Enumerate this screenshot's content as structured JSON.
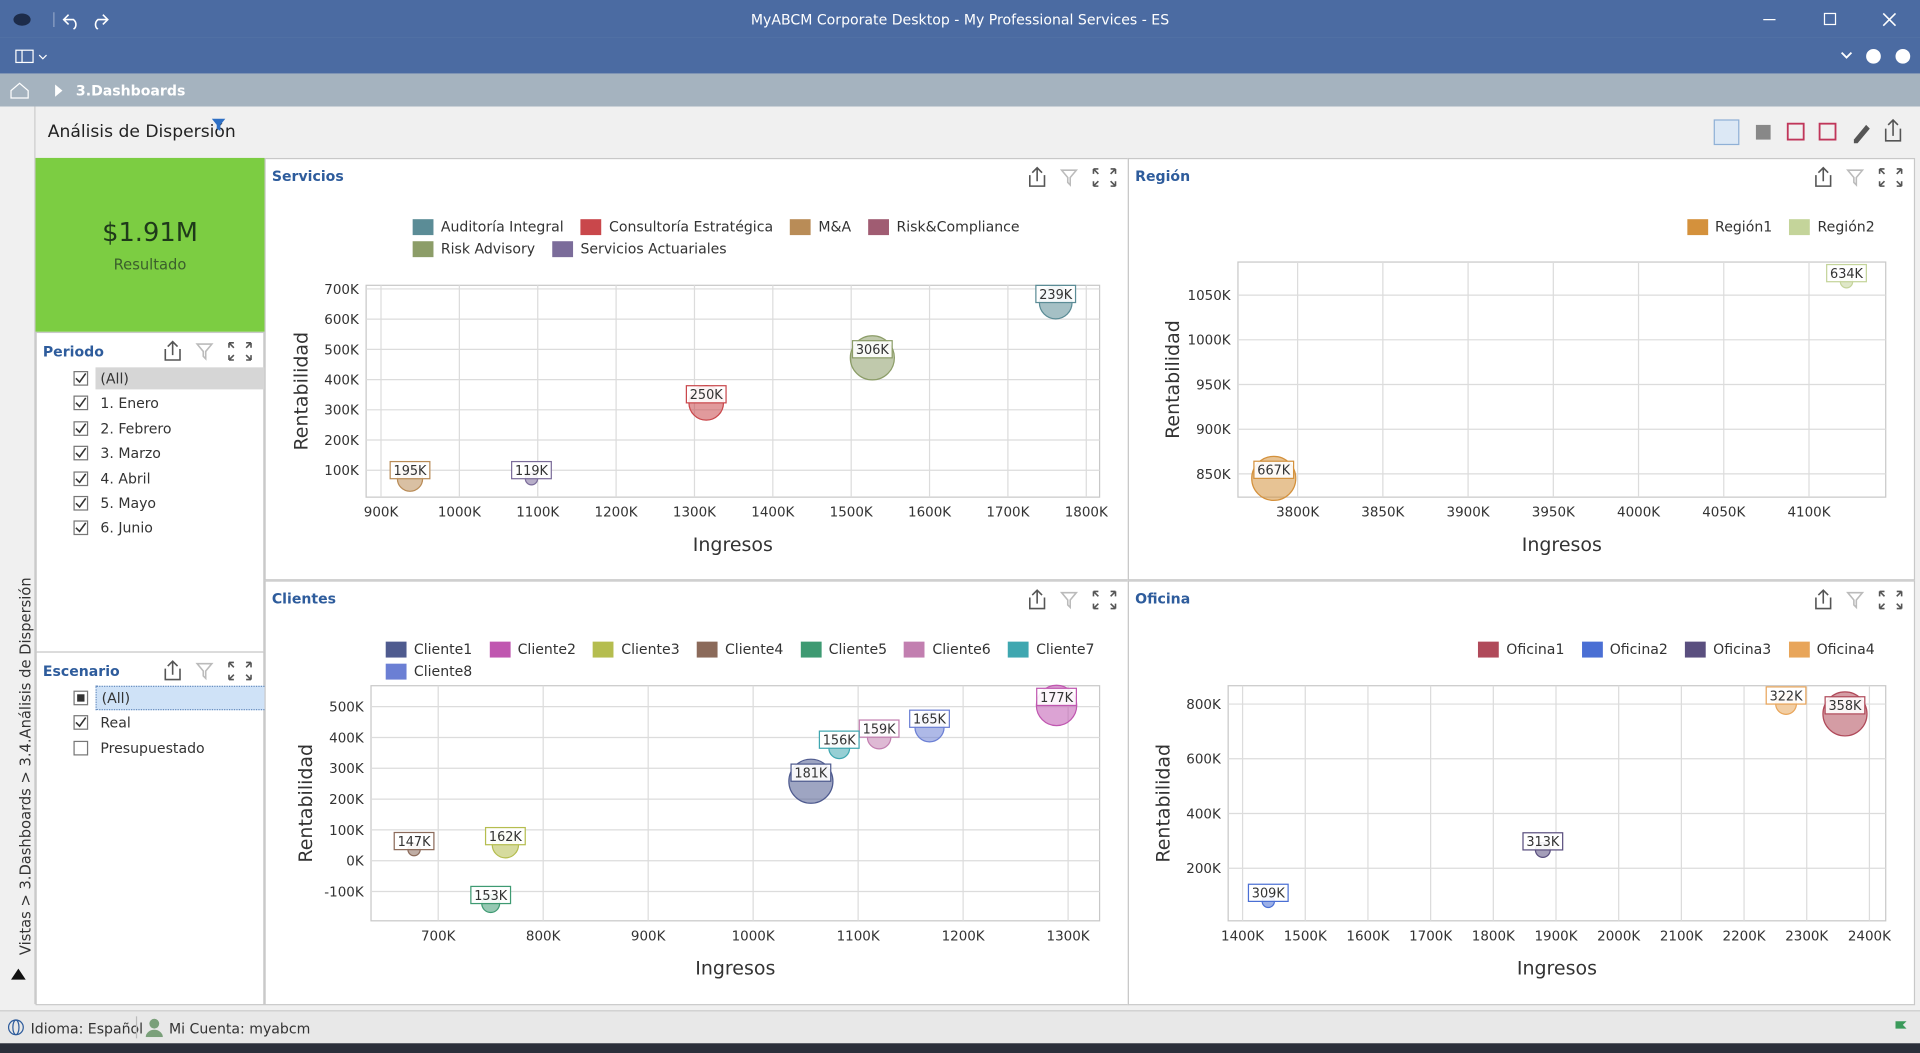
{
  "window": {
    "title": "MyABCM Corporate Desktop - My Professional Services - ES"
  },
  "breadcrumb": "3.Dashboards",
  "side_path": "Vistas > 3.Dashboards > 3.4.Análisis de Dispersión",
  "dashboard_title": "Análisis de Dispersión",
  "kpi": {
    "value": "$1.91M",
    "label": "Resultado"
  },
  "filters": [
    {
      "title": "Periodo",
      "items": [
        {
          "label": "(All)",
          "state": "checked",
          "selected": true
        },
        {
          "label": "1. Enero",
          "state": "checked",
          "selected": false
        },
        {
          "label": "2. Febrero",
          "state": "checked",
          "selected": false
        },
        {
          "label": "3. Marzo",
          "state": "checked",
          "selected": false
        },
        {
          "label": "4. Abril",
          "state": "checked",
          "selected": false
        },
        {
          "label": "5. Mayo",
          "state": "checked",
          "selected": false
        },
        {
          "label": "6. Junio",
          "state": "checked",
          "selected": false
        }
      ]
    },
    {
      "title": "Escenario",
      "items": [
        {
          "label": "(All)",
          "state": "partial",
          "selected": true
        },
        {
          "label": "Real",
          "state": "checked",
          "selected": false
        },
        {
          "label": "Presupuestado",
          "state": "unchecked",
          "selected": false
        }
      ]
    }
  ],
  "status": {
    "language": "Idioma: Español",
    "account": "Mi Cuenta: myabcm"
  },
  "chart_data": [
    {
      "type": "bubble",
      "title": "Servicios",
      "x_label": "Ingresos",
      "y_label": "Rentabilidad",
      "grid": true,
      "legend": "top-left",
      "xlim": [
        881000,
        1817000
      ],
      "xticks": [
        {
          "value": 900000,
          "label": "900K"
        },
        {
          "value": 1000000,
          "label": "1000K"
        },
        {
          "value": 1100000,
          "label": "1100K"
        },
        {
          "value": 1200000,
          "label": "1200K"
        },
        {
          "value": 1300000,
          "label": "1300K"
        },
        {
          "value": 1400000,
          "label": "1400K"
        },
        {
          "value": 1500000,
          "label": "1500K"
        },
        {
          "value": 1600000,
          "label": "1600K"
        },
        {
          "value": 1700000,
          "label": "1700K"
        },
        {
          "value": 1800000,
          "label": "1800K"
        }
      ],
      "ylim": [
        11000,
        712000
      ],
      "yticks": [
        {
          "value": 100000,
          "label": "100K"
        },
        {
          "value": 200000,
          "label": "200K"
        },
        {
          "value": 300000,
          "label": "300K"
        },
        {
          "value": 400000,
          "label": "400K"
        },
        {
          "value": 500000,
          "label": "500K"
        },
        {
          "value": 600000,
          "label": "600K"
        },
        {
          "value": 700000,
          "label": "700K"
        }
      ],
      "series": [
        {
          "name": "Auditoría Integral",
          "color": "#5b8c96",
          "x": [
            1761000
          ],
          "values": [
            655000
          ],
          "sizes": [
            239000
          ],
          "size_labels": [
            "239K"
          ]
        },
        {
          "name": "Consultoría Estratégica",
          "color": "#c9474b",
          "x": [
            1315000
          ],
          "values": [
            323000
          ],
          "sizes": [
            250000
          ],
          "size_labels": [
            "250K"
          ]
        },
        {
          "name": "M&A",
          "color": "#b98c57",
          "x": [
            937000
          ],
          "values": [
            72000
          ],
          "sizes": [
            195000
          ],
          "size_labels": [
            "195K"
          ]
        },
        {
          "name": "Risk&Compliance",
          "color": "#a05c72",
          "x": [],
          "values": [],
          "sizes": [],
          "size_labels": []
        },
        {
          "name": "Risk Advisory",
          "color": "#8c9d68",
          "x": [
            1527000
          ],
          "values": [
            472000
          ],
          "sizes": [
            306000
          ],
          "size_labels": [
            "306K"
          ]
        },
        {
          "name": "Servicios Actuariales",
          "color": "#7b6c9a",
          "x": [
            1092000
          ],
          "values": [
            72000
          ],
          "sizes": [
            119000
          ],
          "size_labels": [
            "119K"
          ]
        }
      ]
    },
    {
      "type": "bubble",
      "title": "Región",
      "x_label": "Ingresos",
      "y_label": "Rentabilidad",
      "grid": true,
      "legend": "top-right",
      "xlim": [
        3765000,
        4145000
      ],
      "xticks": [
        {
          "value": 3800000,
          "label": "3800K"
        },
        {
          "value": 3850000,
          "label": "3850K"
        },
        {
          "value": 3900000,
          "label": "3900K"
        },
        {
          "value": 3950000,
          "label": "3950K"
        },
        {
          "value": 4000000,
          "label": "4000K"
        },
        {
          "value": 4050000,
          "label": "4050K"
        },
        {
          "value": 4100000,
          "label": "4100K"
        }
      ],
      "ylim": [
        824000,
        1087000
      ],
      "yticks": [
        {
          "value": 850000,
          "label": "850K"
        },
        {
          "value": 900000,
          "label": "900K"
        },
        {
          "value": 950000,
          "label": "950K"
        },
        {
          "value": 1000000,
          "label": "1000K"
        },
        {
          "value": 1050000,
          "label": "1050K"
        }
      ],
      "series": [
        {
          "name": "Región1",
          "color": "#d4913c",
          "x": [
            3786000
          ],
          "values": [
            845000
          ],
          "sizes": [
            667000
          ],
          "size_labels": [
            "667K"
          ]
        },
        {
          "name": "Región2",
          "color": "#c4d49a",
          "x": [
            4122000
          ],
          "values": [
            1065000
          ],
          "sizes": [
            634000
          ],
          "size_labels": [
            "634K"
          ]
        }
      ]
    },
    {
      "type": "bubble",
      "title": "Clientes",
      "x_label": "Ingresos",
      "y_label": "Rentabilidad",
      "grid": true,
      "legend": "top-left",
      "xlim": [
        636000,
        1330000
      ],
      "xticks": [
        {
          "value": 700000,
          "label": "700K"
        },
        {
          "value": 800000,
          "label": "800K"
        },
        {
          "value": 900000,
          "label": "900K"
        },
        {
          "value": 1000000,
          "label": "1000K"
        },
        {
          "value": 1100000,
          "label": "1100K"
        },
        {
          "value": 1200000,
          "label": "1200K"
        },
        {
          "value": 1300000,
          "label": "1300K"
        }
      ],
      "ylim": [
        -195000,
        568000
      ],
      "yticks": [
        {
          "value": -100000,
          "label": "-100K"
        },
        {
          "value": 0,
          "label": "0K"
        },
        {
          "value": 100000,
          "label": "100K"
        },
        {
          "value": 200000,
          "label": "200K"
        },
        {
          "value": 300000,
          "label": "300K"
        },
        {
          "value": 400000,
          "label": "400K"
        },
        {
          "value": 500000,
          "label": "500K"
        }
      ],
      "series": [
        {
          "name": "Cliente1",
          "color": "#4f5b8f",
          "x": [
            1055000
          ],
          "values": [
            258000
          ],
          "sizes": [
            181000
          ],
          "size_labels": [
            "181K"
          ]
        },
        {
          "name": "Cliente2",
          "color": "#c057b0",
          "x": [
            1289000
          ],
          "values": [
            504000
          ],
          "sizes": [
            177000
          ],
          "size_labels": [
            "177K"
          ]
        },
        {
          "name": "Cliente3",
          "color": "#b5bd4f",
          "x": [
            764000
          ],
          "values": [
            52000
          ],
          "sizes": [
            162000
          ],
          "size_labels": [
            "162K"
          ]
        },
        {
          "name": "Cliente4",
          "color": "#8b6a5a",
          "x": [
            677000
          ],
          "values": [
            36000
          ],
          "sizes": [
            147000
          ],
          "size_labels": [
            "147K"
          ]
        },
        {
          "name": "Cliente5",
          "color": "#3e9a72",
          "x": [
            750000
          ],
          "values": [
            -139000
          ],
          "sizes": [
            153000
          ],
          "size_labels": [
            "153K"
          ]
        },
        {
          "name": "Cliente6",
          "color": "#c27fb0",
          "x": [
            1120000
          ],
          "values": [
            401000
          ],
          "sizes": [
            159000
          ],
          "size_labels": [
            "159K"
          ]
        },
        {
          "name": "Cliente7",
          "color": "#3fa7b0",
          "x": [
            1082000
          ],
          "values": [
            365000
          ],
          "sizes": [
            156000
          ],
          "size_labels": [
            "156K"
          ]
        },
        {
          "name": "Cliente8",
          "color": "#6b7fd4",
          "x": [
            1168000
          ],
          "values": [
            433000
          ],
          "sizes": [
            165000
          ],
          "size_labels": [
            "165K"
          ]
        }
      ]
    },
    {
      "type": "bubble",
      "title": "Oficina",
      "x_label": "Ingresos",
      "y_label": "Rentabilidad",
      "grid": true,
      "legend": "top-right",
      "xlim": [
        1377000,
        2426000
      ],
      "xticks": [
        {
          "value": 1400000,
          "label": "1400K"
        },
        {
          "value": 1500000,
          "label": "1500K"
        },
        {
          "value": 1600000,
          "label": "1600K"
        },
        {
          "value": 1700000,
          "label": "1700K"
        },
        {
          "value": 1800000,
          "label": "1800K"
        },
        {
          "value": 1900000,
          "label": "1900K"
        },
        {
          "value": 2000000,
          "label": "2000K"
        },
        {
          "value": 2100000,
          "label": "2100K"
        },
        {
          "value": 2200000,
          "label": "2200K"
        },
        {
          "value": 2300000,
          "label": "2300K"
        },
        {
          "value": 2400000,
          "label": "2400K"
        }
      ],
      "ylim": [
        8000,
        867000
      ],
      "yticks": [
        {
          "value": 200000,
          "label": "200K"
        },
        {
          "value": 400000,
          "label": "400K"
        },
        {
          "value": 600000,
          "label": "600K"
        },
        {
          "value": 800000,
          "label": "800K"
        }
      ],
      "series": [
        {
          "name": "Oficina1",
          "color": "#b04a5a",
          "x": [
            2361000
          ],
          "values": [
            764000
          ],
          "sizes": [
            358000
          ],
          "size_labels": [
            "358K"
          ]
        },
        {
          "name": "Oficina2",
          "color": "#4a6fd4",
          "x": [
            1441000
          ],
          "values": [
            79000
          ],
          "sizes": [
            309000
          ],
          "size_labels": [
            "309K"
          ]
        },
        {
          "name": "Oficina3",
          "color": "#5a4f7f",
          "x": [
            1879000
          ],
          "values": [
            267000
          ],
          "sizes": [
            313000
          ],
          "size_labels": [
            "313K"
          ]
        },
        {
          "name": "Oficina4",
          "color": "#e8a55a",
          "x": [
            2267000
          ],
          "values": [
            800000
          ],
          "sizes": [
            322000
          ],
          "size_labels": [
            "322K"
          ]
        }
      ]
    }
  ]
}
